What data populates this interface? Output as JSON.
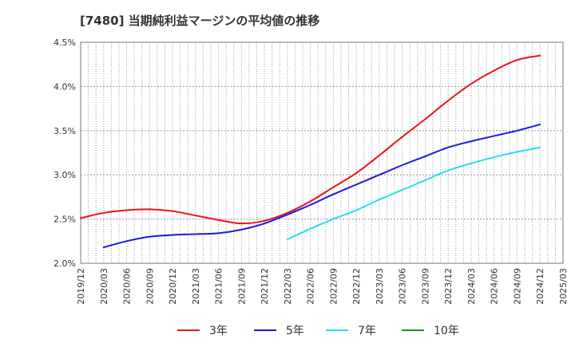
{
  "chart_data": {
    "type": "line",
    "title": "[7480]  当期純利益マージンの平均値の推移",
    "xlabel": "",
    "ylabel": "",
    "ylim": [
      2.0,
      4.5
    ],
    "yticks": [
      "2.0%",
      "2.5%",
      "3.0%",
      "3.5%",
      "4.0%",
      "4.5%"
    ],
    "ytick_values": [
      2.0,
      2.5,
      3.0,
      3.5,
      4.0,
      4.5
    ],
    "xticks": [
      "2019/12",
      "2020/03",
      "2020/06",
      "2020/09",
      "2020/12",
      "2021/03",
      "2021/06",
      "2021/09",
      "2021/12",
      "2022/03",
      "2022/06",
      "2022/09",
      "2022/12",
      "2023/03",
      "2023/06",
      "2023/09",
      "2023/12",
      "2024/03",
      "2024/06",
      "2024/09",
      "2024/12",
      "2025/03"
    ],
    "grid": true,
    "legend_position": "bottom",
    "series": [
      {
        "name": "3年",
        "color": "#e8141c",
        "x": [
          "2019/12",
          "2020/03",
          "2020/06",
          "2020/09",
          "2020/12",
          "2021/03",
          "2021/06",
          "2021/09",
          "2021/12",
          "2022/03",
          "2022/06",
          "2022/09",
          "2022/12",
          "2023/03",
          "2023/06",
          "2023/09",
          "2023/12",
          "2024/03",
          "2024/06",
          "2024/09",
          "2024/12"
        ],
        "values": [
          2.51,
          2.57,
          2.6,
          2.61,
          2.59,
          2.54,
          2.49,
          2.45,
          2.48,
          2.57,
          2.7,
          2.86,
          3.02,
          3.22,
          3.43,
          3.63,
          3.84,
          4.03,
          4.18,
          4.3,
          4.35
        ]
      },
      {
        "name": "5年",
        "color": "#1a1adc",
        "x": [
          "2020/03",
          "2020/06",
          "2020/09",
          "2020/12",
          "2021/03",
          "2021/06",
          "2021/09",
          "2021/12",
          "2022/03",
          "2022/06",
          "2022/09",
          "2022/12",
          "2023/03",
          "2023/06",
          "2023/09",
          "2023/12",
          "2024/03",
          "2024/06",
          "2024/09",
          "2024/12"
        ],
        "values": [
          2.18,
          2.25,
          2.3,
          2.32,
          2.33,
          2.34,
          2.38,
          2.45,
          2.55,
          2.66,
          2.78,
          2.89,
          3.0,
          3.11,
          3.21,
          3.31,
          3.38,
          3.44,
          3.5,
          3.57
        ]
      },
      {
        "name": "7年",
        "color": "#22e0f0",
        "x": [
          "2022/03",
          "2022/06",
          "2022/09",
          "2022/12",
          "2023/03",
          "2023/06",
          "2023/09",
          "2023/12",
          "2024/03",
          "2024/06",
          "2024/09",
          "2024/12"
        ],
        "values": [
          2.27,
          2.39,
          2.5,
          2.6,
          2.72,
          2.83,
          2.94,
          3.05,
          3.13,
          3.2,
          3.26,
          3.31
        ]
      },
      {
        "name": "10年",
        "color": "#228b22",
        "x": [],
        "values": []
      }
    ]
  }
}
